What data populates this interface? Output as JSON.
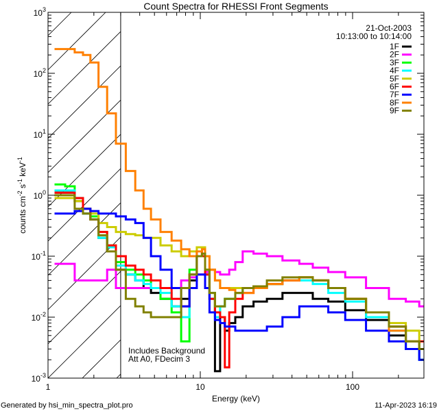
{
  "chart_data": {
    "type": "line",
    "title": "Count Spectra for RHESSI Front Segments",
    "xlabel": "Energy (keV)",
    "ylabel": "counts cm-2 s-1 keV-1",
    "xscale": "log",
    "yscale": "log",
    "xlim": [
      1,
      294
    ],
    "ylim": [
      0.001,
      1000
    ],
    "x_ticks": [
      {
        "v": 1,
        "label": "1"
      },
      {
        "v": 10,
        "label": "10"
      },
      {
        "v": 100,
        "label": "100"
      }
    ],
    "y_ticks": [
      {
        "v": 0.001,
        "exp": "-3"
      },
      {
        "v": 0.01,
        "exp": "-2"
      },
      {
        "v": 0.1,
        "exp": "-1"
      },
      {
        "v": 1,
        "exp": "0"
      },
      {
        "v": 10,
        "exp": "1"
      },
      {
        "v": 100,
        "exp": "2"
      },
      {
        "v": 1000,
        "exp": "3"
      }
    ],
    "date": "21-Oct-2003",
    "time_range": "10:13:00 to 10:14:00",
    "annotations": [
      "Includes Background",
      "Att A0, FDecim 3"
    ],
    "hatched_region_max_energy": 3.0,
    "legend_position": "top-right",
    "x": [
      1.2,
      1.4,
      1.6,
      1.8,
      2.0,
      2.3,
      2.6,
      3.0,
      3.5,
      4.0,
      4.5,
      5.0,
      6.0,
      7.0,
      8.0,
      9.0,
      10.0,
      10.5,
      11.0,
      12.0,
      13.0,
      14.0,
      15.0,
      16.0,
      18.0,
      20,
      25,
      30,
      40,
      50,
      60,
      80,
      100,
      150,
      200,
      250,
      300
    ],
    "series": [
      {
        "name": "1F",
        "color": "#000000",
        "values": [
          1.1,
          1.1,
          0.8,
          0.5,
          0.4,
          0.2,
          0.12,
          0.06,
          0.05,
          0.04,
          0.03,
          0.025,
          0.02,
          0.015,
          0.02,
          0.04,
          0.1,
          0.1,
          0.05,
          0.02,
          0.0013,
          0.01,
          0.006,
          0.008,
          0.01,
          0.015,
          0.018,
          0.02,
          0.025,
          0.025,
          0.02,
          0.018,
          0.013,
          0.009,
          0.005,
          0.003,
          0.002
        ]
      },
      {
        "name": "2F",
        "color": "#ff00ff",
        "values": [
          0.075,
          0.075,
          0.04,
          0.04,
          0.04,
          0.04,
          0.06,
          0.03,
          0.03,
          0.03,
          0.03,
          0.03,
          0.03,
          0.03,
          0.04,
          0.045,
          0.05,
          0.05,
          0.055,
          0.06,
          0.055,
          0.05,
          0.05,
          0.06,
          0.08,
          0.12,
          0.11,
          0.1,
          0.085,
          0.075,
          0.065,
          0.055,
          0.045,
          0.03,
          0.02,
          0.018,
          0.015
        ]
      },
      {
        "name": "3F",
        "color": "#00ff00",
        "values": [
          1.5,
          1.4,
          0.9,
          0.6,
          0.45,
          0.25,
          0.15,
          0.08,
          0.06,
          0.05,
          0.04,
          0.03,
          0.02,
          0.012,
          0.004,
          0.06,
          0.1,
          0.1,
          0.06,
          0.025,
          0.012,
          0.015,
          0.02,
          0.02,
          0.025,
          0.03,
          0.03,
          0.035,
          0.04,
          0.045,
          0.04,
          0.03,
          0.02,
          0.012,
          0.007,
          0.004,
          0.003
        ]
      },
      {
        "name": "4F",
        "color": "#00ffff",
        "values": [
          1.2,
          1.2,
          0.9,
          0.5,
          0.4,
          0.2,
          0.14,
          0.07,
          0.05,
          0.04,
          0.035,
          0.03,
          0.025,
          0.015,
          0.01,
          0.05,
          0.1,
          0.1,
          0.05,
          0.02,
          0.01,
          0.015,
          0.02,
          0.02,
          0.025,
          0.03,
          0.03,
          0.035,
          0.04,
          0.04,
          0.035,
          0.025,
          0.018,
          0.01,
          0.006,
          0.003,
          0.002
        ]
      },
      {
        "name": "5F",
        "color": "#cccc00",
        "values": [
          0.9,
          0.9,
          0.8,
          0.6,
          0.5,
          0.35,
          0.3,
          0.25,
          0.23,
          0.22,
          0.2,
          0.2,
          0.15,
          0.12,
          0.1,
          0.12,
          0.14,
          0.14,
          0.1,
          0.06,
          0.04,
          0.03,
          0.03,
          0.03,
          0.03,
          0.03,
          0.032,
          0.035,
          0.04,
          0.045,
          0.04,
          0.03,
          0.02,
          0.012,
          0.008,
          0.006,
          0.004
        ]
      },
      {
        "name": "6F",
        "color": "#ff0000",
        "values": [
          1.1,
          1.1,
          0.9,
          0.6,
          0.4,
          0.25,
          0.15,
          0.1,
          0.07,
          0.06,
          0.05,
          0.04,
          0.03,
          0.02,
          0.015,
          0.05,
          0.12,
          0.1,
          0.05,
          0.02,
          0.012,
          0.01,
          0.0015,
          0.012,
          0.02,
          0.025,
          0.03,
          0.035,
          0.04,
          0.045,
          0.04,
          0.03,
          0.02,
          0.012,
          0.007,
          0.004,
          0.004
        ]
      },
      {
        "name": "7F",
        "color": "#0000ff",
        "values": [
          0.5,
          0.5,
          0.55,
          0.6,
          0.55,
          0.5,
          0.5,
          0.45,
          0.4,
          0.35,
          0.2,
          0.1,
          0.06,
          0.03,
          0.015,
          0.03,
          0.05,
          0.05,
          0.03,
          0.012,
          0.009,
          0.008,
          0.007,
          0.007,
          0.006,
          0.006,
          0.006,
          0.007,
          0.01,
          0.015,
          0.015,
          0.012,
          0.009,
          0.006,
          0.004,
          0.003,
          0.002
        ]
      },
      {
        "name": "8F",
        "color": "#ff8000",
        "values": [
          250,
          250,
          220,
          200,
          150,
          60,
          22,
          7,
          2.5,
          1.2,
          0.6,
          0.4,
          0.25,
          0.18,
          0.13,
          0.1,
          0.12,
          0.13,
          0.1,
          0.06,
          0.04,
          0.03,
          0.03,
          0.028,
          0.025,
          0.025,
          0.03,
          0.035,
          0.04,
          0.045,
          0.04,
          0.03,
          0.02,
          0.012,
          0.006,
          0.004,
          0.003
        ]
      },
      {
        "name": "9F",
        "color": "#808000",
        "values": [
          1.0,
          1.0,
          0.6,
          0.5,
          0.4,
          0.22,
          0.12,
          0.06,
          0.02,
          0.015,
          0.012,
          0.01,
          0.01,
          0.01,
          0.03,
          0.05,
          0.1,
          0.11,
          0.06,
          0.025,
          0.015,
          0.015,
          0.02,
          0.02,
          0.025,
          0.03,
          0.032,
          0.04,
          0.045,
          0.045,
          0.04,
          0.03,
          0.02,
          0.012,
          0.007,
          0.004,
          0.003
        ]
      }
    ]
  },
  "footer": {
    "generated_by": "Generated by hsi_min_spectra_plot.pro",
    "timestamp": "11-Apr-2023 16:19"
  }
}
